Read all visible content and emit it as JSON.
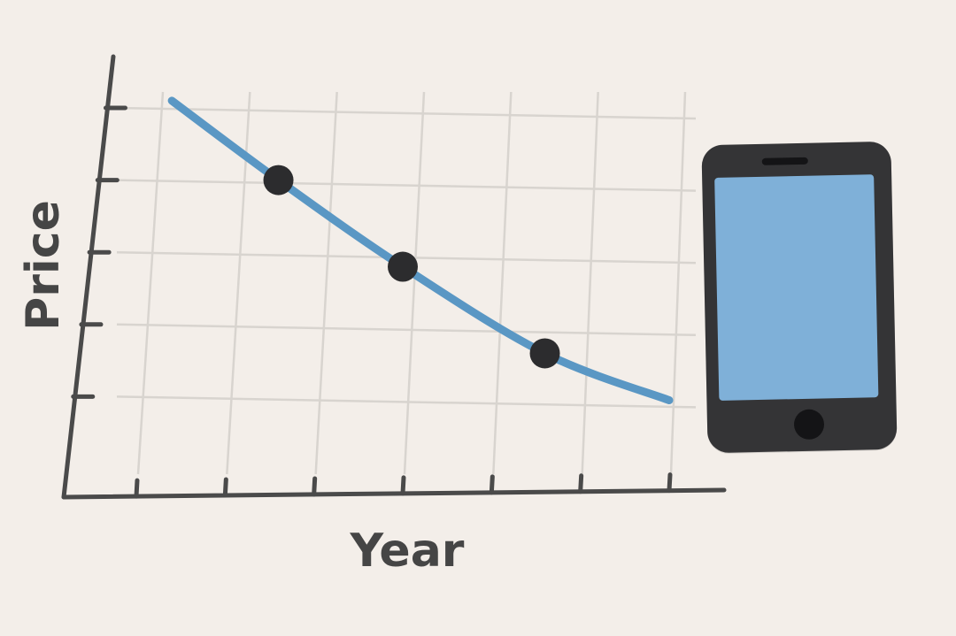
{
  "chart_data": {
    "type": "line",
    "title": "",
    "xlabel": "Year",
    "ylabel": "Price",
    "xlim": [
      0,
      6
    ],
    "ylim": [
      0,
      5
    ],
    "x_ticks": [
      0,
      1,
      2,
      3,
      4,
      5,
      6
    ],
    "y_ticks": [
      1,
      2,
      3,
      4,
      5
    ],
    "grid": true,
    "legend": "none",
    "line_color": "#5a97c4",
    "marker_color": "#2c2c2e",
    "series": [
      {
        "x": [
          0.4,
          1.6,
          3.0,
          4.6,
          6.0
        ],
        "y": [
          5.1,
          4.0,
          2.8,
          1.6,
          0.95
        ]
      }
    ],
    "markers": [
      {
        "x": 1.6,
        "y": 4.0
      },
      {
        "x": 3.0,
        "y": 2.8
      },
      {
        "x": 4.6,
        "y": 1.6
      }
    ]
  },
  "illustration": {
    "icon": "smartphone-icon",
    "body_color": "#343436",
    "screen_color": "#7fb0d8"
  }
}
